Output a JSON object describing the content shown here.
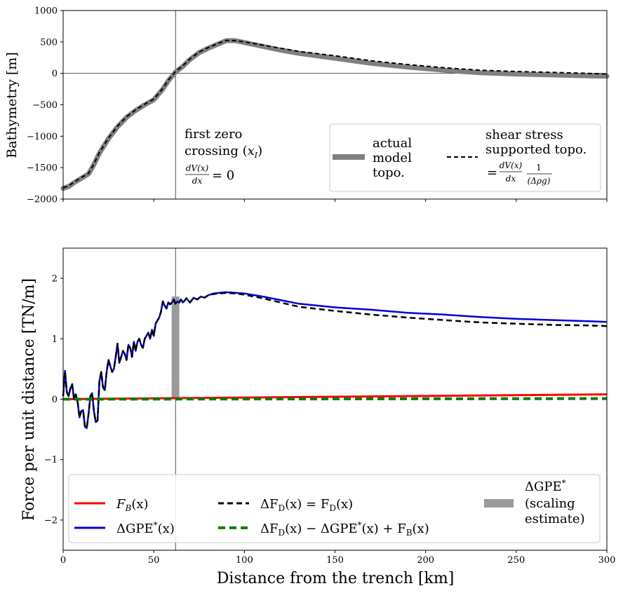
{
  "chart_data": [
    {
      "type": "line",
      "ylabel": "Bathymetry [m]",
      "xlim": [
        0,
        300
      ],
      "ylim": [
        -2000,
        1000
      ],
      "x_ticks": [
        "0",
        "50",
        "100",
        "150",
        "200",
        "250",
        "300"
      ],
      "y_ticks": [
        "1000",
        "500",
        "0",
        "−500",
        "−1000",
        "−1500",
        "−2000"
      ],
      "y_tick_values": [
        1000,
        500,
        0,
        -500,
        -1000,
        -1500,
        -2000
      ],
      "vline_x": 62,
      "hline_y": 0,
      "annotation": {
        "line1": "first zero",
        "line2": "crossing (",
        "xI": "x",
        "xI_sub": "I",
        "close": ")",
        "num": "dV(x)",
        "den": "dx",
        "eq": "= 0"
      },
      "legend": {
        "actual": [
          "actual",
          "model",
          "topo."
        ],
        "shear": [
          "shear stress",
          "supported topo."
        ],
        "shear_formula": {
          "eq": "=",
          "num1": "dV(x)",
          "den1": "dx",
          "num2": "1",
          "den2": "(Δρg)"
        }
      },
      "series": [
        {
          "name": "actual model topo.",
          "color": "#808080",
          "x": [
            0,
            3,
            6,
            10,
            14,
            17,
            20,
            25,
            30,
            35,
            40,
            45,
            50,
            55,
            58,
            62,
            66,
            70,
            75,
            80,
            85,
            90,
            95,
            100,
            110,
            120,
            130,
            150,
            170,
            190,
            210,
            230,
            250,
            270,
            290,
            300
          ],
          "y": [
            -1830,
            -1800,
            -1740,
            -1670,
            -1600,
            -1450,
            -1270,
            -1040,
            -850,
            -700,
            -590,
            -500,
            -420,
            -250,
            -120,
            20,
            110,
            220,
            330,
            400,
            460,
            520,
            520,
            490,
            430,
            370,
            320,
            240,
            160,
            100,
            50,
            10,
            -10,
            -25,
            -40,
            -45
          ]
        },
        {
          "name": "shear stress supported topo.",
          "color": "#000000",
          "x": [
            0,
            3,
            6,
            10,
            14,
            17,
            20,
            25,
            30,
            35,
            40,
            45,
            50,
            55,
            58,
            62,
            66,
            70,
            75,
            80,
            85,
            90,
            95,
            100,
            110,
            120,
            130,
            150,
            170,
            190,
            210,
            230,
            250,
            270,
            290,
            300
          ],
          "y": [
            -1820,
            -1790,
            -1730,
            -1660,
            -1590,
            -1440,
            -1260,
            -1030,
            -840,
            -690,
            -580,
            -490,
            -410,
            -240,
            -110,
            30,
            120,
            230,
            340,
            410,
            470,
            525,
            520,
            500,
            450,
            400,
            350,
            280,
            200,
            140,
            90,
            50,
            30,
            15,
            0,
            -10
          ]
        }
      ]
    },
    {
      "type": "line",
      "xlabel": "Distance from the trench [km]",
      "ylabel": "Force per unit distance [TN/m]",
      "xlim": [
        0,
        300
      ],
      "ylim": [
        -2.5,
        2.5
      ],
      "x_ticks": [
        "0",
        "50",
        "100",
        "150",
        "200",
        "250",
        "300"
      ],
      "y_ticks": [
        "2",
        "1",
        "0",
        "−1",
        "−2"
      ],
      "y_tick_values": [
        2,
        1,
        0,
        -1,
        -2
      ],
      "vline_x": 62,
      "scaling_bar": {
        "x": 62,
        "y0": 0,
        "y1": 1.7
      },
      "legend": {
        "fb": {
          "base": "F",
          "sub": "B",
          "arg": "(x)"
        },
        "dgpe": {
          "delta": "ΔGPE",
          "sup": "*",
          "arg": "(x)"
        },
        "dfd": {
          "text1": "ΔF",
          "sub1": "D",
          "text2": "(x) = F",
          "sub2": "D",
          "text3": "(x)"
        },
        "resid": {
          "text1": "ΔF",
          "sub1": "D",
          "text2": "(x) − ΔGPE",
          "sup": "*",
          "text3": "(x) + F",
          "sub2": "B",
          "text4": "(x)"
        },
        "scaling": {
          "line1": "ΔGPE",
          "sup": "*",
          "line2": "(scaling",
          "line3": "estimate)"
        }
      },
      "series": [
        {
          "name": "F_B(x)",
          "color": "#ff0000",
          "x": [
            0,
            300
          ],
          "y": [
            0.0,
            0.08
          ]
        },
        {
          "name": "ΔGPE*(x)",
          "color": "#0000dd",
          "x": [
            0,
            1,
            2,
            3,
            4,
            5,
            6,
            7,
            8,
            9,
            10,
            11,
            12,
            13,
            14,
            15,
            16,
            17,
            18,
            19,
            20,
            21,
            22,
            23,
            24,
            25,
            26,
            27,
            28,
            29,
            30,
            31,
            32,
            33,
            34,
            35,
            36,
            37,
            38,
            39,
            40,
            41,
            42,
            43,
            44,
            45,
            46,
            47,
            48,
            49,
            50,
            51,
            52,
            53,
            54,
            55,
            56,
            57,
            58,
            59,
            60,
            61,
            62,
            63,
            64,
            65,
            66,
            67,
            68,
            70,
            72,
            74,
            76,
            78,
            80,
            83,
            86,
            90,
            95,
            100,
            110,
            120,
            130,
            150,
            170,
            190,
            210,
            230,
            250,
            270,
            290,
            300
          ],
          "y": [
            0.05,
            0.47,
            0.12,
            0.05,
            0.18,
            0.25,
            0.0,
            0.08,
            -0.05,
            -0.3,
            -0.2,
            -0.18,
            -0.45,
            -0.48,
            -0.25,
            0.05,
            0.1,
            -0.2,
            -0.38,
            -0.35,
            0.3,
            0.45,
            0.2,
            0.15,
            0.45,
            0.65,
            0.55,
            0.45,
            0.5,
            0.7,
            0.92,
            0.6,
            0.7,
            0.8,
            0.75,
            0.65,
            0.9,
            0.85,
            0.7,
            0.95,
            0.8,
            0.95,
            1.0,
            0.9,
            0.85,
            1.0,
            1.05,
            1.1,
            1.0,
            1.15,
            1.05,
            1.25,
            1.3,
            1.35,
            1.45,
            1.62,
            1.55,
            1.5,
            1.6,
            1.57,
            1.6,
            1.65,
            1.58,
            1.62,
            1.6,
            1.65,
            1.6,
            1.63,
            1.67,
            1.6,
            1.68,
            1.65,
            1.7,
            1.68,
            1.72,
            1.75,
            1.76,
            1.77,
            1.76,
            1.75,
            1.7,
            1.64,
            1.58,
            1.52,
            1.48,
            1.43,
            1.4,
            1.36,
            1.33,
            1.31,
            1.29,
            1.28
          ]
        },
        {
          "name": "ΔF_D(x) = F_D(x)",
          "color": "#000000",
          "x": [
            0,
            1,
            2,
            3,
            4,
            5,
            6,
            7,
            8,
            9,
            10,
            11,
            12,
            13,
            14,
            15,
            16,
            17,
            18,
            19,
            20,
            21,
            22,
            23,
            24,
            25,
            26,
            27,
            28,
            29,
            30,
            31,
            32,
            33,
            34,
            35,
            36,
            37,
            38,
            39,
            40,
            41,
            42,
            43,
            44,
            45,
            46,
            47,
            48,
            49,
            50,
            51,
            52,
            53,
            54,
            55,
            56,
            57,
            58,
            59,
            60,
            61,
            62,
            63,
            64,
            65,
            66,
            67,
            68,
            70,
            72,
            74,
            76,
            78,
            80,
            83,
            86,
            90,
            95,
            100,
            110,
            120,
            130,
            150,
            170,
            190,
            210,
            230,
            250,
            270,
            290,
            300
          ],
          "y": [
            0.05,
            0.47,
            0.12,
            0.05,
            0.18,
            0.25,
            0.0,
            0.08,
            -0.05,
            -0.3,
            -0.2,
            -0.18,
            -0.45,
            -0.48,
            -0.25,
            0.05,
            0.1,
            -0.2,
            -0.38,
            -0.35,
            0.3,
            0.45,
            0.2,
            0.15,
            0.45,
            0.65,
            0.55,
            0.45,
            0.5,
            0.7,
            0.92,
            0.6,
            0.7,
            0.8,
            0.75,
            0.65,
            0.9,
            0.85,
            0.7,
            0.95,
            0.8,
            0.95,
            1.0,
            0.9,
            0.85,
            1.0,
            1.05,
            1.1,
            1.0,
            1.15,
            1.05,
            1.25,
            1.3,
            1.35,
            1.45,
            1.62,
            1.55,
            1.5,
            1.6,
            1.57,
            1.6,
            1.65,
            1.58,
            1.62,
            1.6,
            1.65,
            1.6,
            1.63,
            1.67,
            1.6,
            1.68,
            1.65,
            1.7,
            1.68,
            1.72,
            1.74,
            1.75,
            1.76,
            1.75,
            1.73,
            1.67,
            1.6,
            1.53,
            1.46,
            1.4,
            1.35,
            1.31,
            1.27,
            1.25,
            1.23,
            1.22,
            1.21
          ]
        },
        {
          "name": "ΔF_D(x) − ΔGPE*(x) + F_B(x)",
          "color": "#008000",
          "x": [
            0,
            300
          ],
          "y": [
            0.0,
            0.01
          ]
        }
      ]
    }
  ]
}
